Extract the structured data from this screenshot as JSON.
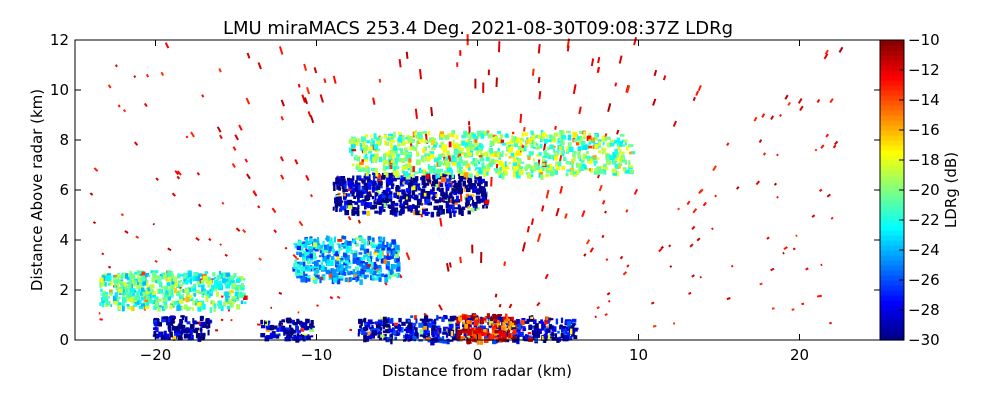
{
  "chart_data": {
    "type": "heatmap",
    "title": "LMU miraMACS 253.4 Deg. 2021-08-30T09:08:37Z  LDRg",
    "xlabel": "Distance from radar (km)",
    "ylabel": "Distance Above radar  (km)",
    "xlim": [
      -25,
      25
    ],
    "ylim": [
      0,
      12
    ],
    "x_ticks": [
      -20,
      -10,
      0,
      10,
      20
    ],
    "x_tick_labels": [
      "−20",
      "−10",
      "0",
      "10",
      "20"
    ],
    "y_ticks": [
      0,
      2,
      4,
      6,
      8,
      10,
      12
    ],
    "y_tick_labels": [
      "0",
      "2",
      "4",
      "6",
      "8",
      "10",
      "12"
    ],
    "colorbar": {
      "label": "LDRg (dB)",
      "vmin": -30,
      "vmax": -10,
      "ticks": [
        -30,
        -28,
        -26,
        -24,
        -22,
        -20,
        -18,
        -16,
        -14,
        -12,
        -10
      ],
      "tick_labels": [
        "−30",
        "−28",
        "−26",
        "−24",
        "−22",
        "−20",
        "−18",
        "−16",
        "−14",
        "−12",
        "−10"
      ],
      "colormap": "jet"
    },
    "regions": [
      {
        "name": "surface-clutter-left",
        "x": [
          -20.2,
          -16.6
        ],
        "y": [
          0.1,
          1.0
        ],
        "value": -29.5
      },
      {
        "name": "surface-clutter-mid",
        "x": [
          -13.5,
          -10.3
        ],
        "y": [
          0.1,
          0.9
        ],
        "value": -29.5
      },
      {
        "name": "surface-clutter-center",
        "x": [
          -7.5,
          6.0
        ],
        "y": [
          0.0,
          1.0
        ],
        "value": -28.5
      },
      {
        "name": "near-radar-core",
        "x": [
          -1.4,
          2.2
        ],
        "y": [
          0.0,
          1.1
        ],
        "value": -13
      },
      {
        "name": "cloud-layer-6km",
        "x": [
          -9.0,
          0.5
        ],
        "y": [
          5.1,
          6.7
        ],
        "value": -29.5
      },
      {
        "name": "cloud-layer-upper",
        "x": [
          -8.0,
          9.5
        ],
        "y": [
          6.6,
          8.4
        ],
        "value": -20
      },
      {
        "name": "mid-level-band",
        "x": [
          -11.5,
          -5.0
        ],
        "y": [
          2.4,
          4.2
        ],
        "value": -24
      },
      {
        "name": "low-layer-left",
        "x": [
          -23.5,
          -14.5
        ],
        "y": [
          1.3,
          2.8
        ],
        "value": -21
      }
    ]
  }
}
